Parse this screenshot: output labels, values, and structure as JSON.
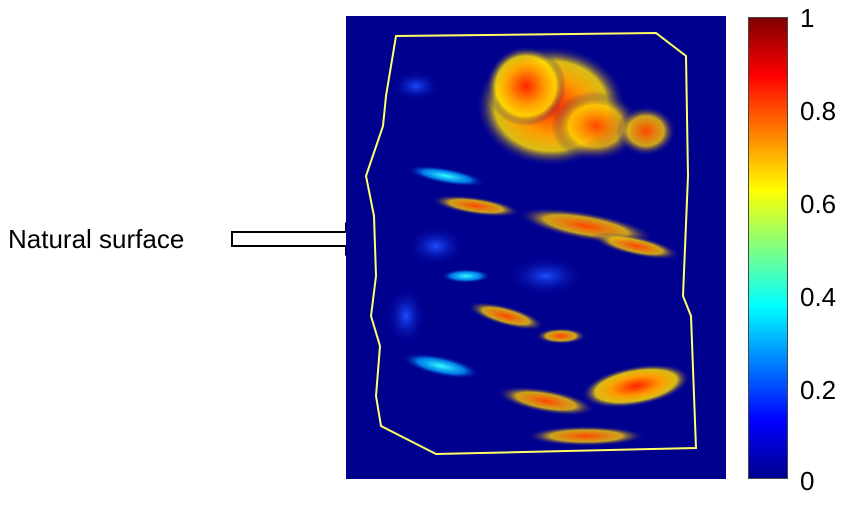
{
  "annotation": {
    "label": "Natural surface"
  },
  "colorbar": {
    "colormap": "jet",
    "ticks": [
      "1",
      "0.8",
      "0.6",
      "0.4",
      "0.2",
      "0"
    ],
    "colors": {
      "low": "#00008f",
      "high": "#800000",
      "boundary": "#ffff66"
    }
  }
}
